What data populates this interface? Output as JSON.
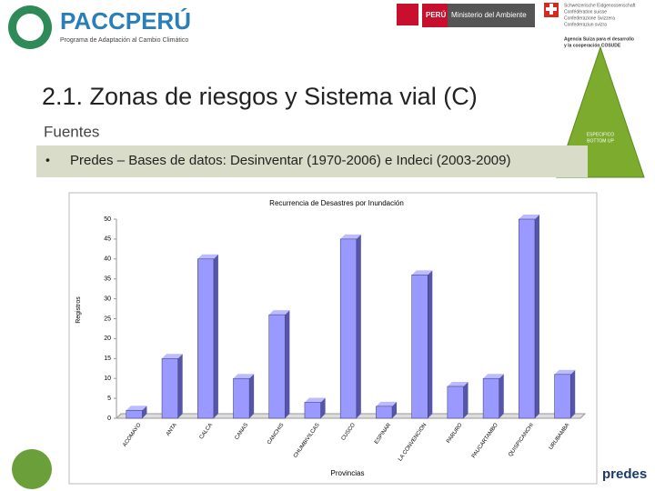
{
  "header": {
    "logo_name": "PACCPERÚ",
    "logo_subtitle": "Programa de Adaptación al Cambio Climático",
    "peru_label": "PERÚ",
    "ministry": "Ministerio del Ambiente",
    "swiss_lines": [
      "Schweizerische Eidgenossenschaft",
      "Confédération suisse",
      "Confederazione Svizzera",
      "Confederaziun svizra"
    ],
    "agency": [
      "Agencia Suiza para el desarrollo",
      "y la cooperación COSUDE"
    ],
    "badge": [
      "ESPECIFICO",
      "BOTTOM UP"
    ]
  },
  "slide": {
    "title": "2.1. Zonas de riesgos y Sistema vial (C)",
    "section": "Fuentes",
    "bullet": "Predes – Bases de datos: Desinventar  (1970-2006) e Indeci (2003-2009)"
  },
  "footer": {
    "predes": "predes"
  },
  "chart_data": {
    "type": "bar",
    "title": "Recurrencia de Desastres por Inundación",
    "y_label": "Registros",
    "x_label": "Provincias",
    "categories": [
      "ACOMAYO",
      "ANTA",
      "CALCA",
      "CANAS",
      "CANCHIS",
      "CHUMBIVILCAS",
      "CUSCO",
      "ESPINAR",
      "LA CONVENCION",
      "PARURO",
      "PAUCARTAMBO",
      "QUISPICANCHI",
      "URUBAMBA"
    ],
    "values": [
      2,
      15,
      40,
      10,
      26,
      4,
      45,
      3,
      36,
      8,
      10,
      50,
      11
    ],
    "color": "#9999ff",
    "ylim": [
      0,
      50
    ],
    "yticks": [
      0,
      5,
      10,
      15,
      20,
      25,
      30,
      35,
      40,
      45,
      50
    ],
    "grid": false
  }
}
